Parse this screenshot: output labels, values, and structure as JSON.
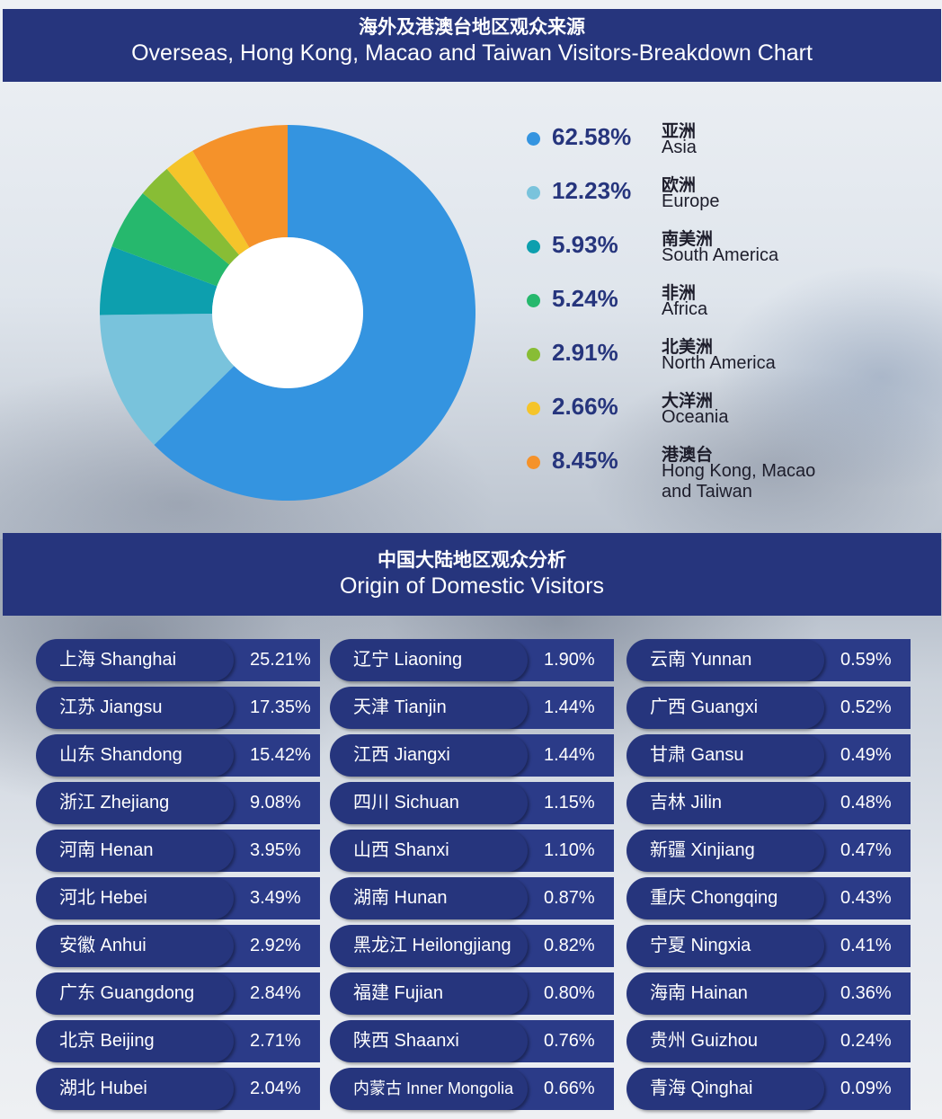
{
  "header": {
    "title_cn": "海外及港澳台地区观众来源",
    "title_en": "Overseas, Hong Kong, Macao and Taiwan Visitors-Breakdown Chart"
  },
  "chart_data": {
    "type": "pie",
    "donut": true,
    "title": "Overseas, Hong Kong, Macao and Taiwan Visitors-Breakdown Chart",
    "legend_position": "right",
    "slices": [
      {
        "label_cn": "亚洲",
        "label_en": "Asia",
        "pct_label": "62.58%",
        "value": 62.58,
        "color": "#3494e0"
      },
      {
        "label_cn": "欧洲",
        "label_en": "Europe",
        "pct_label": "12.23%",
        "value": 12.23,
        "color": "#79c3dc"
      },
      {
        "label_cn": "南美洲",
        "label_en": "South America",
        "pct_label": "5.93%",
        "value": 5.93,
        "color": "#0d9fae"
      },
      {
        "label_cn": "非洲",
        "label_en": "Africa",
        "pct_label": "5.24%",
        "value": 5.24,
        "color": "#26b86d"
      },
      {
        "label_cn": "北美洲",
        "label_en": "North America",
        "pct_label": "2.91%",
        "value": 2.91,
        "color": "#88bd35"
      },
      {
        "label_cn": "大洋洲",
        "label_en": "Oceania",
        "pct_label": "2.66%",
        "value": 2.66,
        "color": "#f5c42a"
      },
      {
        "label_cn": "港澳台",
        "label_en": "Hong Kong, Macao and Taiwan",
        "pct_label": "8.45%",
        "value": 8.45,
        "color": "#f5922a"
      }
    ]
  },
  "domestic": {
    "title_cn": "中国大陆地区观众分析",
    "title_en": "Origin of Domestic Visitors",
    "columns": [
      [
        {
          "name": "上海 Shanghai",
          "value": "25.21%"
        },
        {
          "name": "江苏 Jiangsu",
          "value": "17.35%"
        },
        {
          "name": "山东 Shandong",
          "value": "15.42%"
        },
        {
          "name": "浙江 Zhejiang",
          "value": "9.08%"
        },
        {
          "name": "河南 Henan",
          "value": "3.95%"
        },
        {
          "name": "河北 Hebei",
          "value": "3.49%"
        },
        {
          "name": "安徽 Anhui",
          "value": "2.92%"
        },
        {
          "name": "广东 Guangdong",
          "value": "2.84%"
        },
        {
          "name": "北京 Beijing",
          "value": "2.71%"
        },
        {
          "name": "湖北 Hubei",
          "value": "2.04%"
        }
      ],
      [
        {
          "name": "辽宁 Liaoning",
          "value": "1.90%"
        },
        {
          "name": "天津 Tianjin",
          "value": "1.44%"
        },
        {
          "name": "江西 Jiangxi",
          "value": "1.44%"
        },
        {
          "name": "四川 Sichuan",
          "value": "1.15%"
        },
        {
          "name": "山西 Shanxi",
          "value": "1.10%"
        },
        {
          "name": "湖南 Hunan",
          "value": "0.87%"
        },
        {
          "name": "黑龙江 Heilongjiang",
          "value": "0.82%"
        },
        {
          "name": "福建 Fujian",
          "value": "0.80%"
        },
        {
          "name": "陕西 Shaanxi",
          "value": "0.76%"
        },
        {
          "name": "内蒙古 Inner Mongolia",
          "value": "0.66%"
        }
      ],
      [
        {
          "name": "云南 Yunnan",
          "value": "0.59%"
        },
        {
          "name": "广西 Guangxi",
          "value": "0.52%"
        },
        {
          "name": "甘肃 Gansu",
          "value": "0.49%"
        },
        {
          "name": "吉林 Jilin",
          "value": "0.48%"
        },
        {
          "name": "新疆 Xinjiang",
          "value": "0.47%"
        },
        {
          "name": "重庆 Chongqing",
          "value": "0.43%"
        },
        {
          "name": "宁夏 Ningxia",
          "value": "0.41%"
        },
        {
          "name": "海南 Hainan",
          "value": "0.36%"
        },
        {
          "name": "贵州 Guizhou",
          "value": "0.24%"
        },
        {
          "name": "青海 Qinghai",
          "value": "0.09%"
        }
      ]
    ]
  }
}
